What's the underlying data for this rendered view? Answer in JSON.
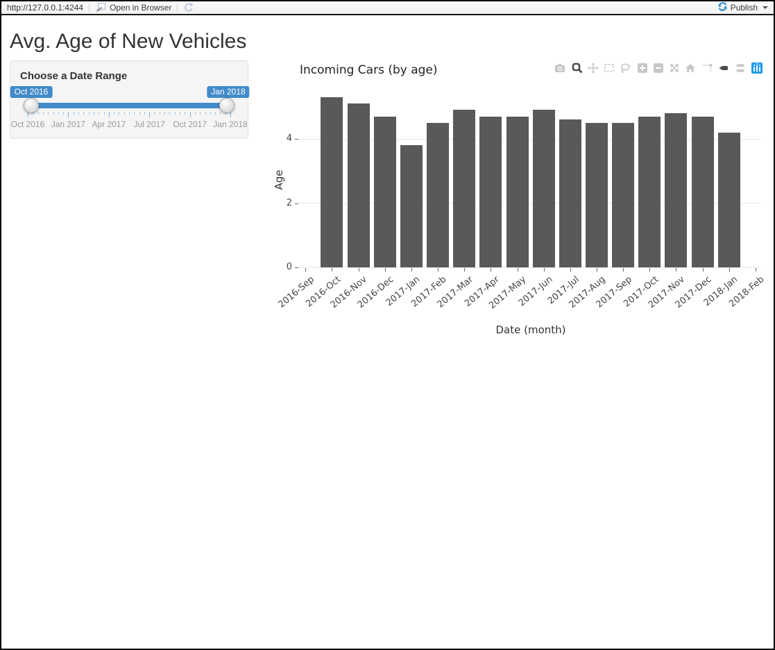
{
  "toolbar": {
    "url": "http://127.0.0.1:4244",
    "open_in_browser_label": "Open in Browser",
    "publish_label": "Publish",
    "icons": [
      "open-in-browser-icon",
      "refresh-icon",
      "publish-icon",
      "dropdown-caret"
    ]
  },
  "page": {
    "title": "Avg. Age of New Vehicles"
  },
  "sidebar": {
    "panel_title": "Choose a Date Range",
    "slider": {
      "from_value": "Oct 2016",
      "to_value": "Jan 2018",
      "axis_labels": [
        "Oct 2016",
        "Jan 2017",
        "Apr 2017",
        "Jul 2017",
        "Oct 2017",
        "Jan 2018"
      ],
      "accent_color": "#428bca"
    }
  },
  "chart_data": {
    "type": "bar",
    "title": "Incoming Cars (by age)",
    "xlabel": "Date (month)",
    "ylabel": "Age",
    "categories": [
      "2016-Oct",
      "2016-Nov",
      "2016-Dec",
      "2017-Jan",
      "2017-Feb",
      "2017-Mar",
      "2017-Apr",
      "2017-May",
      "2017-Jun",
      "2017-Jul",
      "2017-Aug",
      "2017-Sep",
      "2017-Oct",
      "2017-Nov",
      "2017-Dec",
      "2018-Jan"
    ],
    "values": [
      5.3,
      5.1,
      4.7,
      3.8,
      4.5,
      4.9,
      4.7,
      4.7,
      4.9,
      4.6,
      4.5,
      4.5,
      4.7,
      4.8,
      4.7,
      4.2
    ],
    "x_ticks": [
      "2016-Sep",
      "2016-Oct",
      "2016-Nov",
      "2016-Dec",
      "2017-Jan",
      "2017-Feb",
      "2017-Mar",
      "2017-Apr",
      "2017-May",
      "2017-Jun",
      "2017-Jul",
      "2017-Aug",
      "2017-Sep",
      "2017-Oct",
      "2017-Nov",
      "2017-Dec",
      "2018-Jan",
      "2018-Feb"
    ],
    "yticks": [
      0,
      2,
      4
    ],
    "ylim": [
      0,
      5.84
    ],
    "grid": true,
    "legend": "none",
    "bar_color": "#595959",
    "grid_color": "#e8e8e8"
  },
  "modebar": {
    "icons": [
      "camera-icon",
      "zoom-icon",
      "pan-icon",
      "box-select-icon",
      "lasso-select-icon",
      "zoom-in-icon",
      "zoom-out-icon",
      "autoscale-icon",
      "reset-axes-home-icon",
      "toggle-spikelines-icon",
      "hover-closest-icon",
      "hover-compare-icon",
      "plotly-logo-icon"
    ],
    "active_icons": [
      "zoom-icon",
      "hover-closest-icon"
    ],
    "logo_color": "#1f9bea"
  }
}
